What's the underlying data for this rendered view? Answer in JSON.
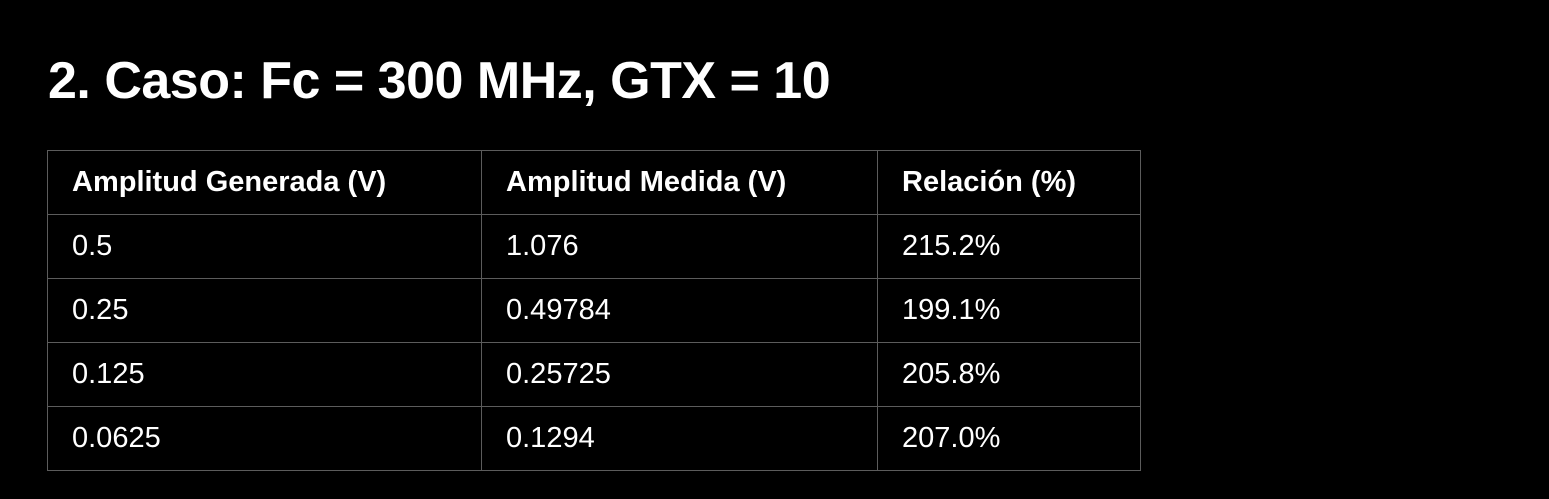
{
  "document": {
    "title": "2. Caso: Fc = 300 MHz, GTX = 10"
  },
  "table": {
    "headers": [
      "Amplitud Generada (V)",
      "Amplitud Medida (V)",
      "Relación (%)"
    ],
    "rows": [
      [
        "0.5",
        "1.076",
        "215.2%"
      ],
      [
        "0.25",
        "0.49784",
        "199.1%"
      ],
      [
        "0.125",
        "0.25725",
        "205.8%"
      ],
      [
        "0.0625",
        "0.1294",
        "207.0%"
      ]
    ]
  },
  "colors": {
    "background": "#000000",
    "text": "#ffffff",
    "border": "#5c5c5c"
  }
}
